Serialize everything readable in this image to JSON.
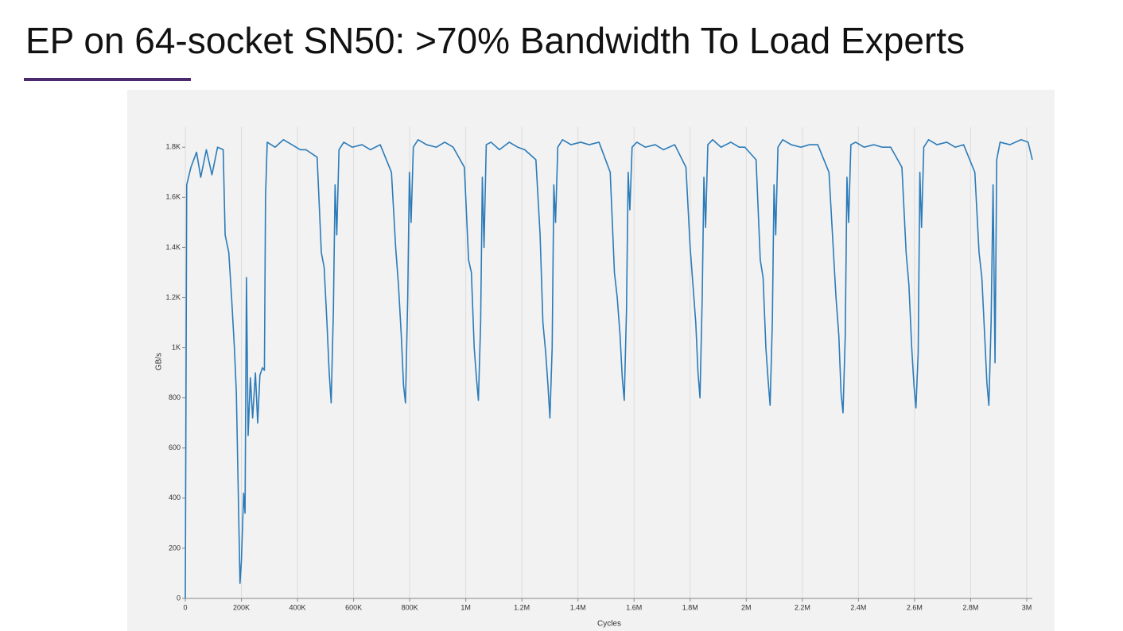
{
  "title": "EP on 64-socket SN50: >70% Bandwidth To Load Experts",
  "chart_data": {
    "type": "line",
    "x_label": "Cycles",
    "y_label": "GB/s",
    "color": "#2b7bb9",
    "grid": true,
    "xlim": [
      0,
      3020000
    ],
    "ylim": [
      0,
      1880
    ],
    "xticks": [
      0,
      {
        "value": 200000,
        "label": "200K"
      },
      {
        "value": 400000,
        "label": "400K"
      },
      {
        "value": 600000,
        "label": "600K"
      },
      {
        "value": 800000,
        "label": "800K"
      },
      {
        "value": 1000000,
        "label": "1M"
      },
      {
        "value": 1200000,
        "label": "1.2M"
      },
      {
        "value": 1400000,
        "label": "1.4M"
      },
      {
        "value": 1600000,
        "label": "1.6M"
      },
      {
        "value": 1800000,
        "label": "1.8M"
      },
      {
        "value": 2000000,
        "label": "2M"
      },
      {
        "value": 2200000,
        "label": "2.2M"
      },
      {
        "value": 2400000,
        "label": "2.4M"
      },
      {
        "value": 2600000,
        "label": "2.6M"
      },
      {
        "value": 2800000,
        "label": "2.8M"
      },
      {
        "value": 3000000,
        "label": "3M"
      }
    ],
    "yticks": [
      0,
      200,
      400,
      600,
      800,
      {
        "value": 1000,
        "label": "1K"
      },
      {
        "value": 1200,
        "label": "1.2K"
      },
      {
        "value": 1400,
        "label": "1.4K"
      },
      {
        "value": 1600,
        "label": "1.6K"
      },
      {
        "value": 1800,
        "label": "1.8K"
      }
    ],
    "x": [
      0,
      5000,
      20000,
      40000,
      55000,
      75000,
      95000,
      115000,
      135000,
      142000,
      155000,
      165000,
      175000,
      182000,
      195000,
      200000,
      208000,
      213000,
      218000,
      224000,
      232000,
      240000,
      250000,
      258000,
      266000,
      275000,
      282000,
      286000,
      292000,
      320000,
      350000,
      380000,
      410000,
      430000,
      470000,
      485000,
      495000,
      505000,
      513000,
      520000,
      528000,
      534000,
      540000,
      548000,
      565000,
      595000,
      630000,
      660000,
      695000,
      735000,
      750000,
      760000,
      770000,
      778000,
      785000,
      793000,
      799000,
      805000,
      813000,
      830000,
      860000,
      895000,
      925000,
      955000,
      995000,
      1010000,
      1020000,
      1030000,
      1038000,
      1045000,
      1053000,
      1059000,
      1065000,
      1073000,
      1090000,
      1120000,
      1155000,
      1185000,
      1210000,
      1250000,
      1265000,
      1275000,
      1285000,
      1293000,
      1300000,
      1308000,
      1314000,
      1320000,
      1328000,
      1345000,
      1375000,
      1410000,
      1440000,
      1475000,
      1515000,
      1530000,
      1540000,
      1550000,
      1558000,
      1565000,
      1573000,
      1579000,
      1585000,
      1593000,
      1610000,
      1640000,
      1675000,
      1705000,
      1745000,
      1785000,
      1800000,
      1810000,
      1820000,
      1828000,
      1835000,
      1843000,
      1849000,
      1855000,
      1863000,
      1880000,
      1910000,
      1945000,
      1975000,
      1995000,
      2035000,
      2050000,
      2060000,
      2070000,
      2078000,
      2085000,
      2093000,
      2099000,
      2105000,
      2113000,
      2130000,
      2160000,
      2195000,
      2225000,
      2255000,
      2295000,
      2310000,
      2320000,
      2330000,
      2338000,
      2345000,
      2353000,
      2359000,
      2365000,
      2373000,
      2390000,
      2420000,
      2455000,
      2485000,
      2515000,
      2555000,
      2570000,
      2580000,
      2590000,
      2598000,
      2605000,
      2613000,
      2619000,
      2625000,
      2633000,
      2650000,
      2680000,
      2715000,
      2745000,
      2775000,
      2815000,
      2830000,
      2840000,
      2850000,
      2858000,
      2865000,
      2873000,
      2880000,
      2887000,
      2893000,
      2905000,
      2940000,
      2980000,
      3005000,
      3020000
    ],
    "values": [
      0,
      1650,
      1720,
      1780,
      1680,
      1790,
      1690,
      1800,
      1790,
      1450,
      1380,
      1200,
      1000,
      820,
      60,
      150,
      420,
      340,
      1280,
      650,
      880,
      720,
      900,
      700,
      890,
      920,
      910,
      1600,
      1820,
      1800,
      1830,
      1810,
      1790,
      1790,
      1760,
      1380,
      1320,
      1100,
      900,
      780,
      1150,
      1650,
      1450,
      1790,
      1820,
      1800,
      1810,
      1790,
      1810,
      1700,
      1400,
      1250,
      1050,
      850,
      780,
      1200,
      1700,
      1500,
      1800,
      1830,
      1810,
      1800,
      1820,
      1800,
      1720,
      1350,
      1300,
      1000,
      880,
      790,
      1100,
      1680,
      1400,
      1810,
      1820,
      1790,
      1820,
      1800,
      1790,
      1750,
      1450,
      1100,
      980,
      850,
      720,
      1000,
      1650,
      1500,
      1800,
      1830,
      1810,
      1820,
      1810,
      1820,
      1700,
      1300,
      1200,
      1050,
      880,
      790,
      1150,
      1700,
      1550,
      1800,
      1820,
      1800,
      1810,
      1790,
      1810,
      1720,
      1400,
      1250,
      1100,
      900,
      800,
      1200,
      1680,
      1480,
      1810,
      1830,
      1800,
      1820,
      1800,
      1800,
      1750,
      1350,
      1280,
      1000,
      870,
      770,
      1100,
      1650,
      1450,
      1800,
      1830,
      1810,
      1800,
      1810,
      1810,
      1700,
      1400,
      1200,
      1050,
      820,
      740,
      1050,
      1680,
      1500,
      1810,
      1820,
      1800,
      1810,
      1800,
      1800,
      1720,
      1380,
      1250,
      1000,
      850,
      760,
      980,
      1700,
      1480,
      1800,
      1830,
      1810,
      1820,
      1800,
      1810,
      1700,
      1380,
      1280,
      1050,
      860,
      770,
      1100,
      1650,
      940,
      1750,
      1820,
      1810,
      1830,
      1820,
      1750
    ]
  }
}
